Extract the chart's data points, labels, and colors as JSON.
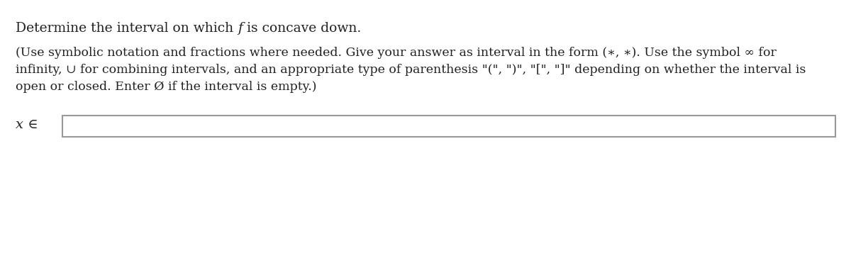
{
  "line1_part1": "Determine the interval on which ",
  "line1_italic": "f",
  "line1_part2": " is concave down.",
  "instruction_line1": "(Use symbolic notation and fractions where needed. Give your answer as interval in the form (∗, ∗). Use the symbol ∞ for",
  "instruction_line2": "infinity, ∪ for combining intervals, and an appropriate type of parenthesis \"(\", \")\", \"[\", \"]\" depending on whether the interval is",
  "instruction_line3": "open or closed. Enter Ø if the interval is empty.)",
  "label_text": "x ∈",
  "background_color": "#ffffff",
  "text_color": "#222222",
  "box_border_color": "#999999",
  "font_size_title": 13.5,
  "font_size_instruction": 12.5,
  "font_size_label": 14
}
